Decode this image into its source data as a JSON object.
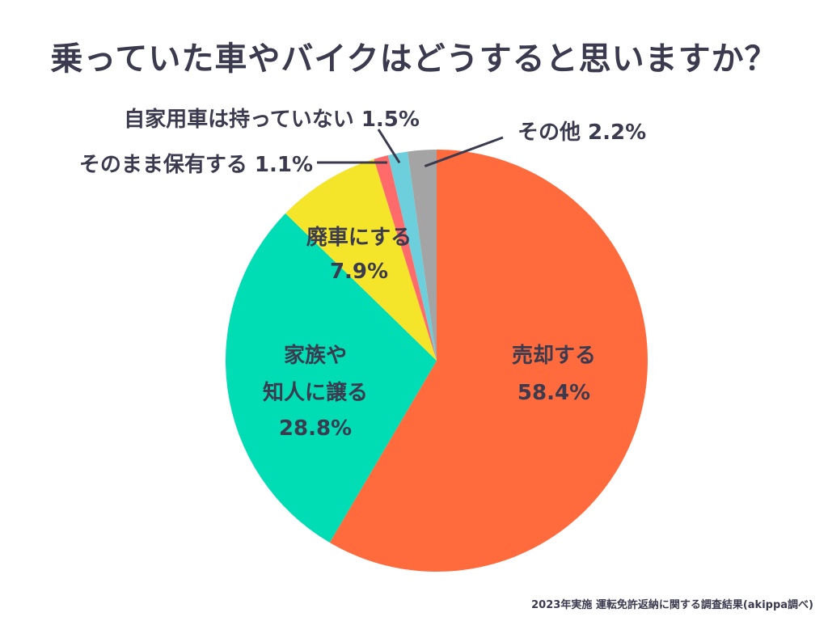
{
  "chart_data": {
    "type": "pie",
    "title": "乗っていた車やバイクはどうすると思いますか？",
    "start": "top",
    "direction": "clockwise",
    "slices": [
      {
        "label": "売却する",
        "value": 58.4,
        "value_label": "58.4%",
        "color": "#ff6b3d"
      },
      {
        "label": "家族や知人に譲る",
        "label_lines": [
          "家族や",
          "知人に譲る"
        ],
        "value": 28.8,
        "value_label": "28.8%",
        "color": "#00dcb4"
      },
      {
        "label": "廃車にする",
        "value": 7.9,
        "value_label": "7.9%",
        "color": "#f4e52b"
      },
      {
        "label": "そのまま保有する",
        "value": 1.1,
        "value_label": "1.1%",
        "color": "#ff6b6b"
      },
      {
        "label": "自家用車は持っていない",
        "value": 1.5,
        "value_label": "1.5%",
        "color": "#6ccfdb"
      },
      {
        "label": "その他",
        "value": 2.2,
        "value_label": "2.2%",
        "color": "#a4a4a4"
      }
    ],
    "source_note": "2023年実施 運転免許返納に関する調査結果(akippa調べ)"
  }
}
